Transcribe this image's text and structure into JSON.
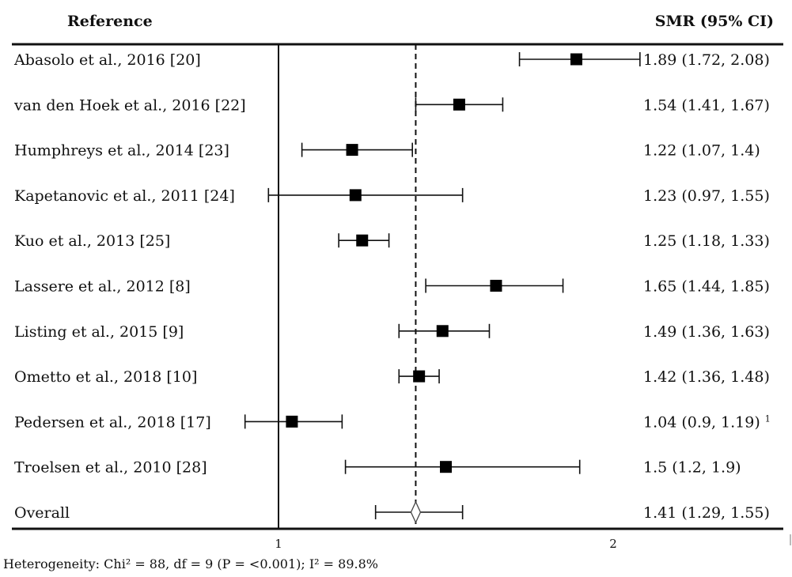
{
  "chart_data": {
    "type": "forest",
    "header": {
      "left": "Reference",
      "right": "SMR (95% CI)"
    },
    "x_axis": {
      "ticks": [
        1,
        2
      ],
      "tick_labels": [
        "1",
        "2"
      ],
      "range": [
        1,
        2.6
      ]
    },
    "reference_line": 1.41,
    "studies": [
      {
        "label": "Abasolo et al., 2016 [20]",
        "est": 1.89,
        "lo": 1.72,
        "hi": 2.08,
        "ci_text": "1.89 (1.72, 2.08)"
      },
      {
        "label": "van den Hoek et al., 2016 [22]",
        "est": 1.54,
        "lo": 1.41,
        "hi": 1.67,
        "ci_text": "1.54 (1.41, 1.67)"
      },
      {
        "label": "Humphreys et al., 2014 [23]",
        "est": 1.22,
        "lo": 1.07,
        "hi": 1.4,
        "ci_text": "1.22 (1.07, 1.4)"
      },
      {
        "label": "Kapetanovic et al., 2011 [24]",
        "est": 1.23,
        "lo": 0.97,
        "hi": 1.55,
        "ci_text": "1.23 (0.97, 1.55)"
      },
      {
        "label": "Kuo et al., 2013 [25]",
        "est": 1.25,
        "lo": 1.18,
        "hi": 1.33,
        "ci_text": "1.25 (1.18, 1.33)"
      },
      {
        "label": "Lassere et al., 2012 [8]",
        "est": 1.65,
        "lo": 1.44,
        "hi": 1.85,
        "ci_text": "1.65 (1.44, 1.85)"
      },
      {
        "label": "Listing et al., 2015 [9]",
        "est": 1.49,
        "lo": 1.36,
        "hi": 1.63,
        "ci_text": "1.49 (1.36, 1.63)"
      },
      {
        "label": "Ometto et al., 2018 [10]",
        "est": 1.42,
        "lo": 1.36,
        "hi": 1.48,
        "ci_text": "1.42 (1.36, 1.48)"
      },
      {
        "label": "Pedersen et al., 2018 [17]",
        "est": 1.04,
        "lo": 0.9,
        "hi": 1.19,
        "ci_text": "1.04 (0.9, 1.19)",
        "sup": "1"
      },
      {
        "label": "Troelsen et al., 2010 [28]",
        "est": 1.5,
        "lo": 1.2,
        "hi": 1.9,
        "ci_text": "1.5 (1.2, 1.9)"
      }
    ],
    "overall": {
      "label": "Overall",
      "est": 1.41,
      "lo": 1.29,
      "hi": 1.55,
      "ci_text": "1.41 (1.29, 1.55)"
    },
    "footer": "Heterogeneity:  Chi² = 88,  df = 9 (P = <0.001);  I² = 89.8%"
  }
}
